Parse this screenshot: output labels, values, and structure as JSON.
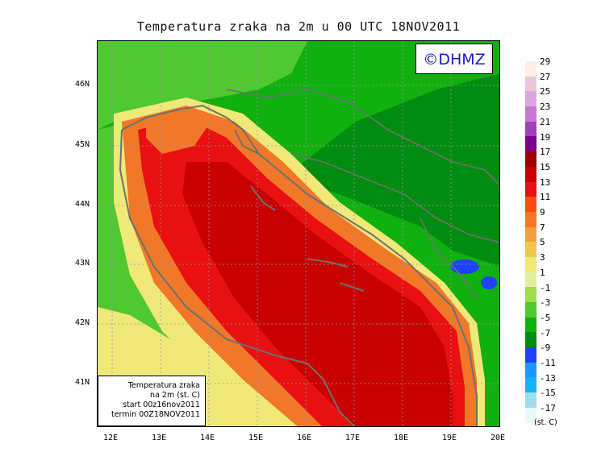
{
  "title": "Temperatura zraka na 2m u 00 UTC 18NOV2011",
  "brand": "©DHMZ",
  "info": {
    "line1": "Temperatura zraka",
    "line2": "na 2m (st. C)",
    "line3": "start 00z16nov2011",
    "line4": "termin 00Z18NOV2011"
  },
  "lat_labels": [
    "46N",
    "45N",
    "44N",
    "43N",
    "42N",
    "41N"
  ],
  "lon_labels": [
    "12E",
    "13E",
    "14E",
    "15E",
    "16E",
    "17E",
    "18E",
    "19E",
    "20E"
  ],
  "legend": {
    "units": "(st. C)",
    "labels": [
      "29",
      "27",
      "25",
      "23",
      "21",
      "19",
      "17",
      "15",
      "13",
      "11",
      "9",
      "7",
      "5",
      "3",
      "1",
      "-1",
      "-3",
      "-5",
      "-7",
      "-9",
      "-11",
      "-13",
      "-15",
      "-17"
    ],
    "colors": [
      "#fff0e6",
      "#e8c8d8",
      "#dca8dc",
      "#c878d0",
      "#a040b8",
      "#7c0090",
      "#a00000",
      "#c80000",
      "#e81010",
      "#ff4a10",
      "#f07828",
      "#f0a040",
      "#f0c850",
      "#f0e878",
      "#e0f0a0",
      "#a0dc50",
      "#50c830",
      "#10b010",
      "#008c10",
      "#1e40ff",
      "#1e96ff",
      "#14b4f0",
      "#a0dcec",
      "#e6fafa"
    ]
  },
  "map": {
    "colors": {
      "land_dark": "#008c10",
      "land_mid": "#10b010",
      "land_light": "#50c830",
      "coast_yellow": "#f0e878",
      "coast_orange": "#f07828",
      "sea_red": "#e81010",
      "sea_darkred": "#c80000",
      "lake_blue": "#1e40ff",
      "border_gray": "#707070"
    }
  }
}
